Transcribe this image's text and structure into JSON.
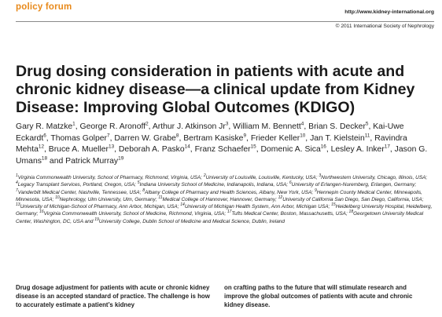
{
  "header": {
    "section": "policy forum",
    "url": "http://www.kidney-international.org",
    "copyright": "© 2011 International Society of Nephrology"
  },
  "title": "Drug dosing consideration in patients with acute and chronic kidney disease—a clinical update from Kidney Disease: Improving Global Outcomes (KDIGO)",
  "authors": [
    {
      "name": "Gary R. Matzke",
      "sup": "1"
    },
    {
      "name": "George R. Aronoff",
      "sup": "2"
    },
    {
      "name": "Arthur J. Atkinson Jr",
      "sup": "3"
    },
    {
      "name": "William M. Bennett",
      "sup": "4"
    },
    {
      "name": "Brian S. Decker",
      "sup": "5"
    },
    {
      "name": "Kai-Uwe Eckardt",
      "sup": "6"
    },
    {
      "name": "Thomas Golper",
      "sup": "7"
    },
    {
      "name": "Darren W. Grabe",
      "sup": "8"
    },
    {
      "name": "Bertram Kasiske",
      "sup": "9"
    },
    {
      "name": "Frieder Keller",
      "sup": "10"
    },
    {
      "name": "Jan T. Kielstein",
      "sup": "11"
    },
    {
      "name": "Ravindra Mehta",
      "sup": "12"
    },
    {
      "name": "Bruce A. Mueller",
      "sup": "13"
    },
    {
      "name": "Deborah A. Pasko",
      "sup": "14"
    },
    {
      "name": "Franz Schaefer",
      "sup": "15"
    },
    {
      "name": "Domenic A. Sica",
      "sup": "16"
    },
    {
      "name": "Lesley A. Inker",
      "sup": "17"
    },
    {
      "name": "Jason G. Umans",
      "sup": "18"
    },
    {
      "name": "Patrick Murray",
      "sup": "19"
    }
  ],
  "affiliations": [
    {
      "n": "1",
      "text": "Virginia Commonwealth University, School of Pharmacy, Richmond, Virginia, USA; "
    },
    {
      "n": "2",
      "text": "University of Louisville, Louisville, Kentucky, USA; "
    },
    {
      "n": "3",
      "text": "Northwestern University, Chicago, Illinois, USA; "
    },
    {
      "n": "4",
      "text": "Legacy Transplant Services, Portland, Oregon, USA; "
    },
    {
      "n": "5",
      "text": "Indiana University School of Medicine, Indianapolis, Indiana, USA; "
    },
    {
      "n": "6",
      "text": "University of Erlangen-Nuremberg, Erlangen, Germany; "
    },
    {
      "n": "7",
      "text": "Vanderbilt Medical Center, Nashville, Tennessee, USA; "
    },
    {
      "n": "8",
      "text": "Albany College of Pharmacy and Health Sciences, Albany, New York, USA; "
    },
    {
      "n": "9",
      "text": "Hennepin County Medical Center, Minneapolis, Minnesota, USA; "
    },
    {
      "n": "10",
      "text": "Nephrology, Ulm University, Ulm, Germany; "
    },
    {
      "n": "11",
      "text": "Medical College of Hannover, Hannover, Germany; "
    },
    {
      "n": "12",
      "text": "University of California San Diego, San Diego, California, USA; "
    },
    {
      "n": "13",
      "text": "University of Michigan-School of Pharmacy, Ann Arbor, Michigan, USA; "
    },
    {
      "n": "14",
      "text": "University of Michigan Health System, Ann Arbor, Michigan USA; "
    },
    {
      "n": "15",
      "text": "Heidelberg University Hospital, Heidelberg, Germany; "
    },
    {
      "n": "16",
      "text": "Virginia Commonwealth University, School of Medicine, Richmond, Virginia, USA; "
    },
    {
      "n": "17",
      "text": "Tufts Medical Center, Boston, Massachusetts, USA; "
    },
    {
      "n": "18",
      "text": "Georgetown University Medical Center, Washington, DC, USA and "
    },
    {
      "n": "19",
      "text": "University College, Dublin School of Medicine and Medical Science, Dublin, Ireland"
    }
  ],
  "abstract": {
    "left": "Drug dosage adjustment for patients with acute or chronic kidney disease is an accepted standard of practice. The challenge is how to accurately estimate a patient’s kidney",
    "right": "on crafting paths to the future that will stimulate research and improve the global outcomes of patients with acute and chronic kidney disease."
  }
}
